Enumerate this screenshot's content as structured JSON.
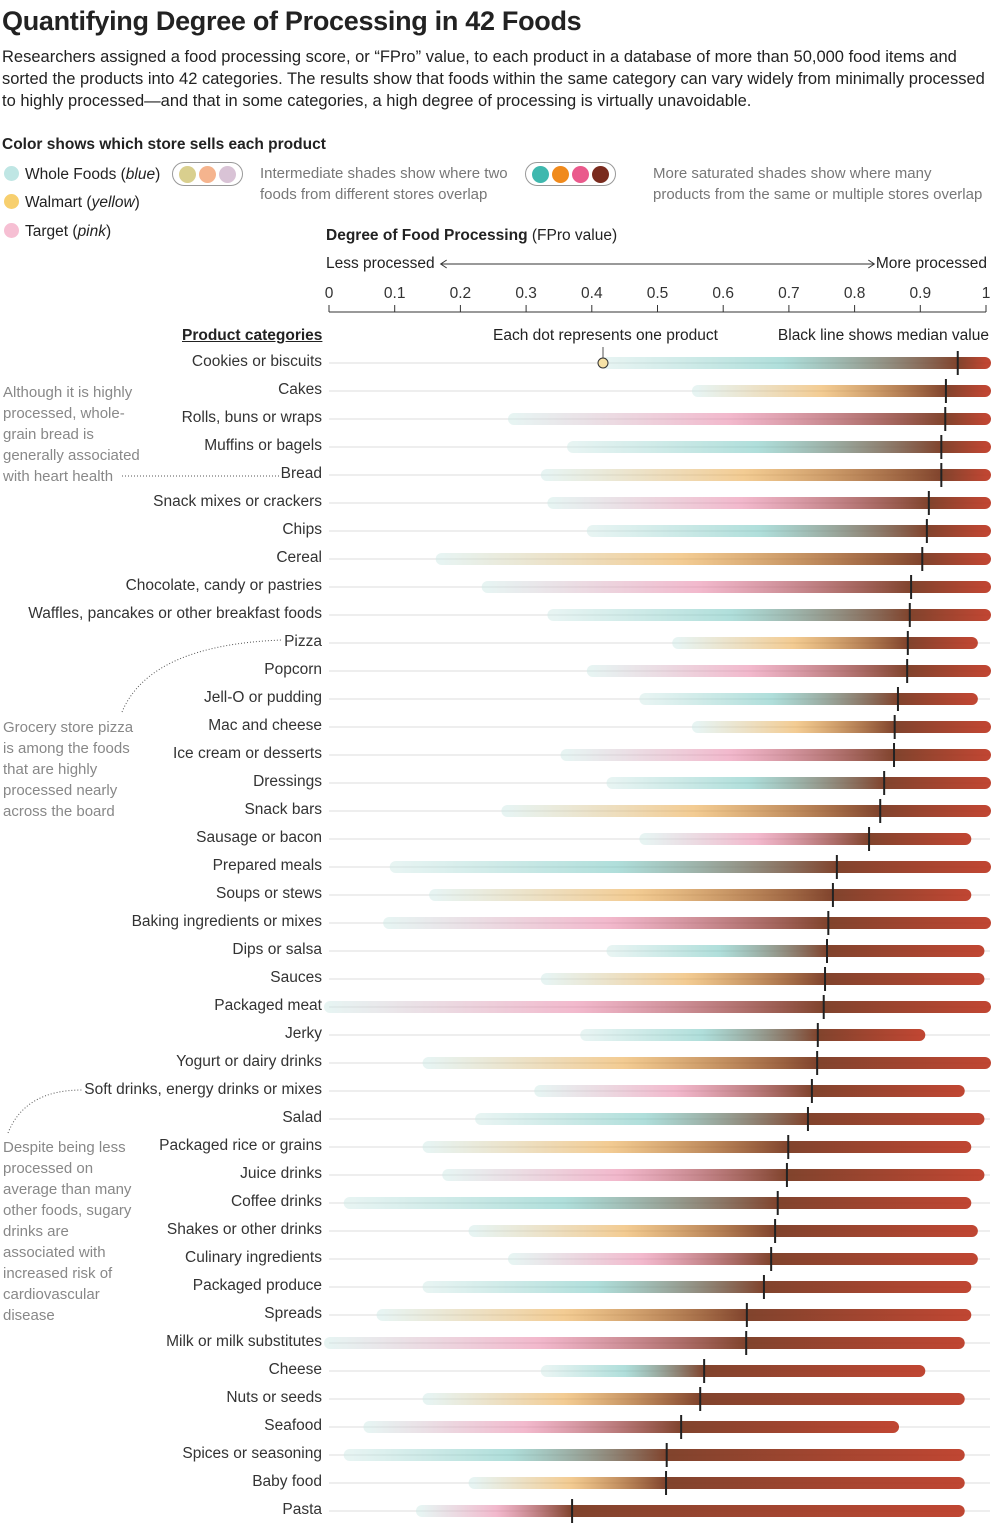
{
  "title": "Quantifying Degree of Processing in 42 Foods",
  "subtitle": "Researchers assigned a food processing score, or “FPro” value, to each product in a database of more than 50,000 food items and sorted the products into 42 categories. The results show that foods within the same category can vary widely from minimally processed to highly processed—and that in some categories, a high degree of processing is virtually unavoidable.",
  "legend": {
    "heading": "Color shows which store sells each product",
    "stores": [
      {
        "name": "Whole Foods",
        "color_word": "blue",
        "color": "#bfe6e4"
      },
      {
        "name": "Walmart",
        "color_word": "yellow",
        "color": "#f7cf6e"
      },
      {
        "name": "Target",
        "color_word": "pink",
        "color": "#f6bfd3"
      }
    ],
    "overlap_note": "Intermediate shades show where two foods from different stores overlap",
    "saturated_note": "More saturated shades show where many products from the same or multiple stores overlap",
    "overlap_colors": [
      "#d9cf8e",
      "#f5b48e",
      "#d9c3d6"
    ],
    "saturated_colors": [
      "#3fb8ae",
      "#f08a1c",
      "#ea5a8c",
      "#7a2b1e"
    ]
  },
  "axis": {
    "title_bold": "Degree of Food Processing",
    "title_rest": "(FPro value)",
    "less": "Less processed",
    "more": "More processed",
    "ticks": [
      "0",
      "0.1",
      "0.2",
      "0.3",
      "0.4",
      "0.5",
      "0.6",
      "0.7",
      "0.8",
      "0.9",
      "1"
    ]
  },
  "headers": {
    "categories": "Product categories",
    "dot_note": "Each dot represents one product",
    "median_note": "Black line shows median value"
  },
  "annotations": {
    "bread": "Although it is highly processed, whole-grain bread is generally associated with heart health",
    "pizza": "Grocery store pizza is among the foods that are highly processed nearly across the board",
    "soft_drinks": "Despite being less processed on average than many other foods, sugary drinks are associated with increased risk of cardiovascular disease"
  },
  "chart_data": {
    "type": "strip",
    "xlabel": "Degree of Food Processing (FPro value)",
    "xlim": [
      0,
      1
    ],
    "grid": false,
    "categories": [
      "Cookies or biscuits",
      "Cakes",
      "Rolls, buns or wraps",
      "Muffins or bagels",
      "Bread",
      "Snack mixes or crackers",
      "Chips",
      "Cereal",
      "Chocolate, candy or pastries",
      "Waffles, pancakes or other breakfast foods",
      "Pizza",
      "Popcorn",
      "Jell-O or pudding",
      "Mac and cheese",
      "Ice cream or desserts",
      "Dressings",
      "Snack bars",
      "Sausage or bacon",
      "Prepared meals",
      "Soups or stews",
      "Baking ingredients or mixes",
      "Dips or salsa",
      "Sauces",
      "Packaged meat",
      "Jerky",
      "Yogurt or dairy drinks",
      "Soft drinks, energy drinks or mixes",
      "Salad",
      "Packaged rice or grains",
      "Juice drinks",
      "Coffee drinks",
      "Shakes or other drinks",
      "Culinary ingredients",
      "Packaged produce",
      "Spreads",
      "Milk or milk substitutes",
      "Cheese",
      "Nuts or seeds",
      "Seafood",
      "Spices or seasoning",
      "Baby food",
      "Pasta"
    ],
    "median": [
      0.957,
      0.939,
      0.938,
      0.932,
      0.932,
      0.913,
      0.91,
      0.903,
      0.886,
      0.884,
      0.881,
      0.88,
      0.866,
      0.861,
      0.86,
      0.845,
      0.839,
      0.822,
      0.773,
      0.767,
      0.76,
      0.758,
      0.755,
      0.753,
      0.744,
      0.743,
      0.735,
      0.729,
      0.699,
      0.697,
      0.683,
      0.679,
      0.673,
      0.662,
      0.636,
      0.635,
      0.571,
      0.565,
      0.536,
      0.514,
      0.513,
      0.37
    ],
    "min": [
      0.42,
      0.56,
      0.28,
      0.37,
      0.33,
      0.34,
      0.4,
      0.17,
      0.24,
      0.34,
      0.53,
      0.4,
      0.48,
      0.56,
      0.36,
      0.43,
      0.27,
      0.48,
      0.1,
      0.16,
      0.09,
      0.43,
      0.33,
      0.0,
      0.39,
      0.15,
      0.32,
      0.23,
      0.15,
      0.18,
      0.03,
      0.22,
      0.28,
      0.15,
      0.08,
      0.0,
      0.33,
      0.15,
      0.06,
      0.03,
      0.22,
      0.14
    ],
    "max": [
      1,
      1,
      1,
      1,
      1,
      1,
      1,
      1,
      1,
      1,
      0.98,
      1,
      0.98,
      1,
      1,
      1,
      1,
      0.97,
      1,
      0.97,
      1,
      0.99,
      0.99,
      1,
      0.9,
      1,
      0.96,
      0.99,
      0.97,
      0.99,
      0.97,
      0.98,
      0.98,
      0.97,
      0.97,
      0.96,
      0.9,
      0.96,
      0.86,
      0.96,
      0.96,
      0.96
    ]
  }
}
